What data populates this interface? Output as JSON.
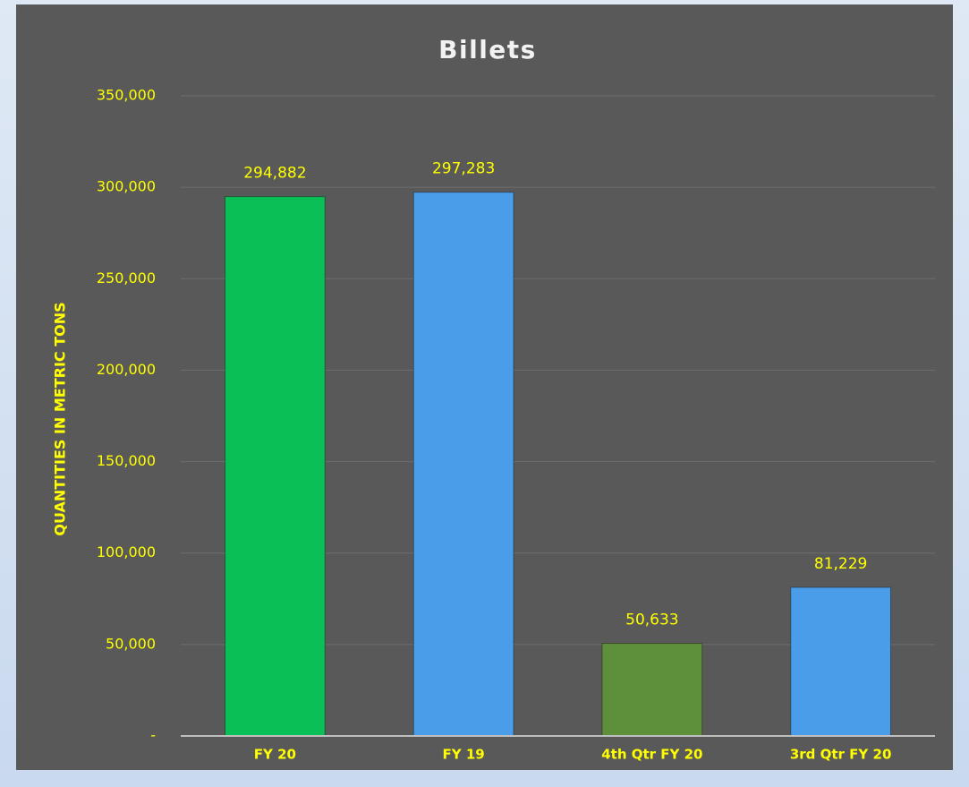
{
  "chart_data": {
    "type": "bar",
    "title": "Billets",
    "y_label": "QUANTITIES IN METRIC TONS",
    "categories": [
      "FY 20",
      "FY 19",
      "4th Qtr FY 20",
      "3rd Qtr FY 20"
    ],
    "values": [
      294882,
      297283,
      50633,
      81229
    ],
    "value_labels": [
      "294,882",
      "297,283",
      "50,633",
      "81,229"
    ],
    "colors": [
      "#0abf55",
      "#4a9de8",
      "#5e8f3a",
      "#4a9de8"
    ],
    "ylim": [
      0,
      350000
    ],
    "yticks": [
      {
        "value": 0,
        "label": "-"
      },
      {
        "value": 50000,
        "label": "50,000"
      },
      {
        "value": 100000,
        "label": "100,000"
      },
      {
        "value": 150000,
        "label": "150,000"
      },
      {
        "value": 200000,
        "label": "200,000"
      },
      {
        "value": 250000,
        "label": "250,000"
      },
      {
        "value": 300000,
        "label": "300,000"
      },
      {
        "value": 350000,
        "label": "350,000"
      }
    ],
    "grid": true
  }
}
